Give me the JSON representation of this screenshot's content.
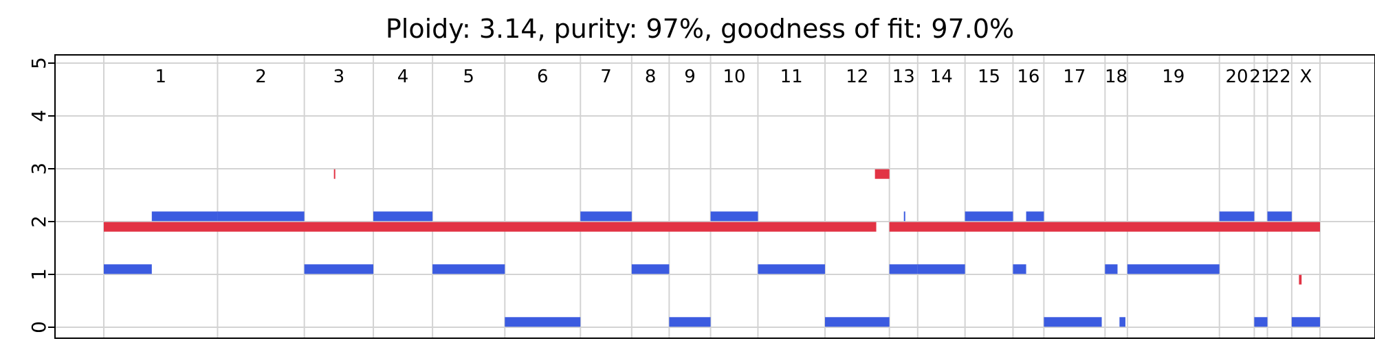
{
  "chart_data": {
    "type": "segment",
    "title": "Ploidy: 3.14, purity: 97%, goodness of fit: 97.0%",
    "xlabel": "",
    "ylabel": "",
    "ylim": [
      0,
      5
    ],
    "yticks": [
      0,
      1,
      2,
      3,
      4,
      5
    ],
    "grid": true,
    "colors": {
      "major": "#e23344",
      "minor": "#3b5be0",
      "grid": "#d3d3d3"
    },
    "chromosomes": [
      {
        "name": "1",
        "start": 0,
        "end": 1.73
      },
      {
        "name": "2",
        "start": 1.73,
        "end": 3.05
      },
      {
        "name": "3",
        "start": 3.05,
        "end": 4.1
      },
      {
        "name": "4",
        "start": 4.1,
        "end": 5.0
      },
      {
        "name": "5",
        "start": 5.0,
        "end": 6.1
      },
      {
        "name": "6",
        "start": 6.1,
        "end": 7.25
      },
      {
        "name": "7",
        "start": 7.25,
        "end": 8.03
      },
      {
        "name": "8",
        "start": 8.03,
        "end": 8.6
      },
      {
        "name": "9",
        "start": 8.6,
        "end": 9.23
      },
      {
        "name": "10",
        "start": 9.23,
        "end": 9.95
      },
      {
        "name": "11",
        "start": 9.95,
        "end": 10.97
      },
      {
        "name": "12",
        "start": 10.97,
        "end": 11.95
      },
      {
        "name": "13",
        "start": 11.95,
        "end": 12.38
      },
      {
        "name": "14",
        "start": 12.38,
        "end": 13.1
      },
      {
        "name": "15",
        "start": 13.1,
        "end": 13.83
      },
      {
        "name": "16",
        "start": 13.83,
        "end": 14.3
      },
      {
        "name": "17",
        "start": 14.3,
        "end": 15.23
      },
      {
        "name": "18",
        "start": 15.23,
        "end": 15.57
      },
      {
        "name": "19",
        "start": 15.57,
        "end": 16.97
      },
      {
        "name": "20",
        "start": 16.97,
        "end": 17.5
      },
      {
        "name": "21",
        "start": 17.5,
        "end": 17.7
      },
      {
        "name": "22",
        "start": 17.7,
        "end": 18.07
      },
      {
        "name": "X",
        "start": 18.07,
        "end": 18.5
      }
    ],
    "series": [
      {
        "key": "major",
        "segments": [
          {
            "x0": 0.0,
            "x1": 11.75,
            "y": 1.9
          },
          {
            "x0": 3.5,
            "x1": 3.52,
            "y": 2.9
          },
          {
            "x0": 11.73,
            "x1": 11.95,
            "y": 2.9
          },
          {
            "x0": 11.95,
            "x1": 18.5,
            "y": 1.9
          },
          {
            "x0": 18.18,
            "x1": 18.22,
            "y": 0.9
          }
        ]
      },
      {
        "key": "minor",
        "segments": [
          {
            "x0": 0.0,
            "x1": 0.73,
            "y": 1.1
          },
          {
            "x0": 0.73,
            "x1": 1.73,
            "y": 2.1
          },
          {
            "x0": 1.73,
            "x1": 3.05,
            "y": 2.1
          },
          {
            "x0": 3.05,
            "x1": 4.1,
            "y": 1.1
          },
          {
            "x0": 4.1,
            "x1": 5.0,
            "y": 2.1
          },
          {
            "x0": 5.0,
            "x1": 6.1,
            "y": 1.1
          },
          {
            "x0": 6.1,
            "x1": 7.25,
            "y": 0.1
          },
          {
            "x0": 7.25,
            "x1": 8.03,
            "y": 2.1
          },
          {
            "x0": 8.03,
            "x1": 8.6,
            "y": 1.1
          },
          {
            "x0": 8.6,
            "x1": 9.23,
            "y": 0.1
          },
          {
            "x0": 9.23,
            "x1": 9.95,
            "y": 2.1
          },
          {
            "x0": 9.95,
            "x1": 10.97,
            "y": 1.1
          },
          {
            "x0": 10.97,
            "x1": 11.95,
            "y": 0.1
          },
          {
            "x0": 12.17,
            "x1": 12.19,
            "y": 2.1
          },
          {
            "x0": 11.95,
            "x1": 12.38,
            "y": 1.1
          },
          {
            "x0": 12.38,
            "x1": 13.1,
            "y": 1.1
          },
          {
            "x0": 13.1,
            "x1": 13.83,
            "y": 2.1
          },
          {
            "x0": 13.83,
            "x1": 14.03,
            "y": 1.1
          },
          {
            "x0": 14.03,
            "x1": 14.3,
            "y": 2.1
          },
          {
            "x0": 14.3,
            "x1": 15.18,
            "y": 0.1
          },
          {
            "x0": 15.23,
            "x1": 15.42,
            "y": 1.1
          },
          {
            "x0": 15.45,
            "x1": 15.54,
            "y": 0.1
          },
          {
            "x0": 15.57,
            "x1": 16.97,
            "y": 1.1
          },
          {
            "x0": 16.97,
            "x1": 17.5,
            "y": 2.1
          },
          {
            "x0": 17.5,
            "x1": 17.7,
            "y": 0.1
          },
          {
            "x0": 17.7,
            "x1": 18.07,
            "y": 2.1
          },
          {
            "x0": 18.07,
            "x1": 18.5,
            "y": 0.1
          }
        ]
      }
    ]
  }
}
